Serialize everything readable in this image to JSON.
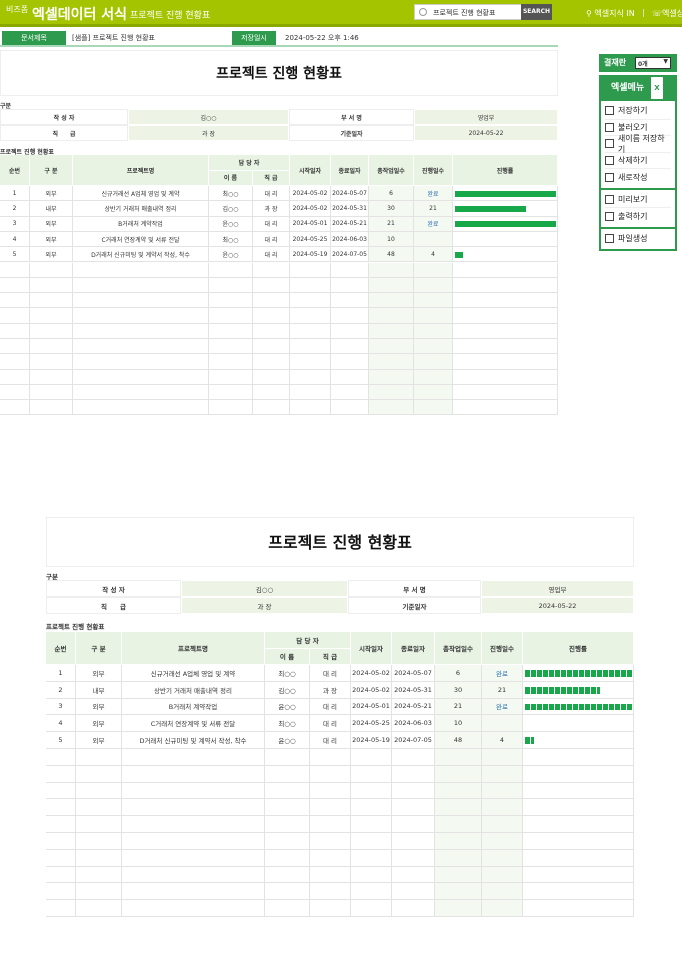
{
  "header": {
    "brand_small": "비즈폼",
    "brand": "엑셀데이터 서식",
    "subtitle": "프로젝트 진행 현황표",
    "search_value": "프로젝트 진행 현황표",
    "search_button": "SEARCH",
    "link1": "엑셀지식 IN",
    "link2": "엑셀상"
  },
  "docbar": {
    "title_label": "문서제목",
    "title_value": "[샘플] 프로젝트 진행 현황표",
    "saved_label": "저장일시",
    "saved_value": "2024-05-22  오후 1:46"
  },
  "sheet": {
    "title": "프로젝트 진행 현황표",
    "section_label": "구분",
    "info": {
      "writer_label": "작 성 자",
      "writer": "김○○",
      "dept_label": "부 서 명",
      "dept": "영업부",
      "rank_label": "직　　급",
      "rank": "과 장",
      "date_label": "기준일자",
      "date": "2024-05-22"
    },
    "table_label": "프로젝트 진행 현황표",
    "headers": {
      "no": "순번",
      "type": "구 분",
      "project": "프로젝트명",
      "manager": "담 당 자",
      "name": "이 름",
      "rank": "직 급",
      "start": "시작일자",
      "end": "종료일자",
      "total_days": "총작업일수",
      "elapsed": "진행일수",
      "progress": "진행률"
    },
    "rows": [
      {
        "no": "1",
        "type": "외부",
        "project": "신규거래선 A업체 영업 및 계약",
        "name": "최○○",
        "rank": "대 리",
        "start": "2024-05-02",
        "end": "2024-05-07",
        "total_days": "6",
        "elapsed": "완료",
        "progress": 100
      },
      {
        "no": "2",
        "type": "내부",
        "project": "상반기 거래처 매출내역 정리",
        "name": "김○○",
        "rank": "과 장",
        "start": "2024-05-02",
        "end": "2024-05-31",
        "total_days": "30",
        "elapsed": "21",
        "progress": 70
      },
      {
        "no": "3",
        "type": "외부",
        "project": "B거래처 계약작업",
        "name": "윤○○",
        "rank": "대 리",
        "start": "2024-05-01",
        "end": "2024-05-21",
        "total_days": "21",
        "elapsed": "완료",
        "progress": 100
      },
      {
        "no": "4",
        "type": "외부",
        "project": "C거래처 연장계약 및 서류 전달",
        "name": "최○○",
        "rank": "대 리",
        "start": "2024-05-25",
        "end": "2024-06-03",
        "total_days": "10",
        "elapsed": "",
        "progress": 0
      },
      {
        "no": "5",
        "type": "외부",
        "project": "D거래처 신규미팅 및 계약서 작성, 착수",
        "name": "윤○○",
        "rank": "대 리",
        "start": "2024-05-19",
        "end": "2024-07-05",
        "total_days": "48",
        "elapsed": "4",
        "progress": 8
      }
    ]
  },
  "panel": {
    "sign_label": "결재란",
    "sign_value": "0개",
    "menu_title": "엑셀메뉴",
    "items": [
      {
        "label": "저장하기",
        "icon": "save-icon"
      },
      {
        "label": "불러오기",
        "icon": "load-icon"
      },
      {
        "label": "새이름 저장하기",
        "icon": "save-as-icon"
      },
      {
        "label": "삭제하기",
        "icon": "trash-icon"
      },
      {
        "label": "새로작성",
        "icon": "new-doc-icon"
      },
      {
        "label": "미리보기",
        "icon": "preview-icon"
      },
      {
        "label": "출력하기",
        "icon": "print-icon"
      },
      {
        "label": "파일생성",
        "icon": "folder-icon"
      }
    ]
  },
  "colors": {
    "brand": "#a4c400",
    "accent": "#2e9a4e",
    "bar": "#17a84a",
    "done_text": "#2a6fb0"
  }
}
